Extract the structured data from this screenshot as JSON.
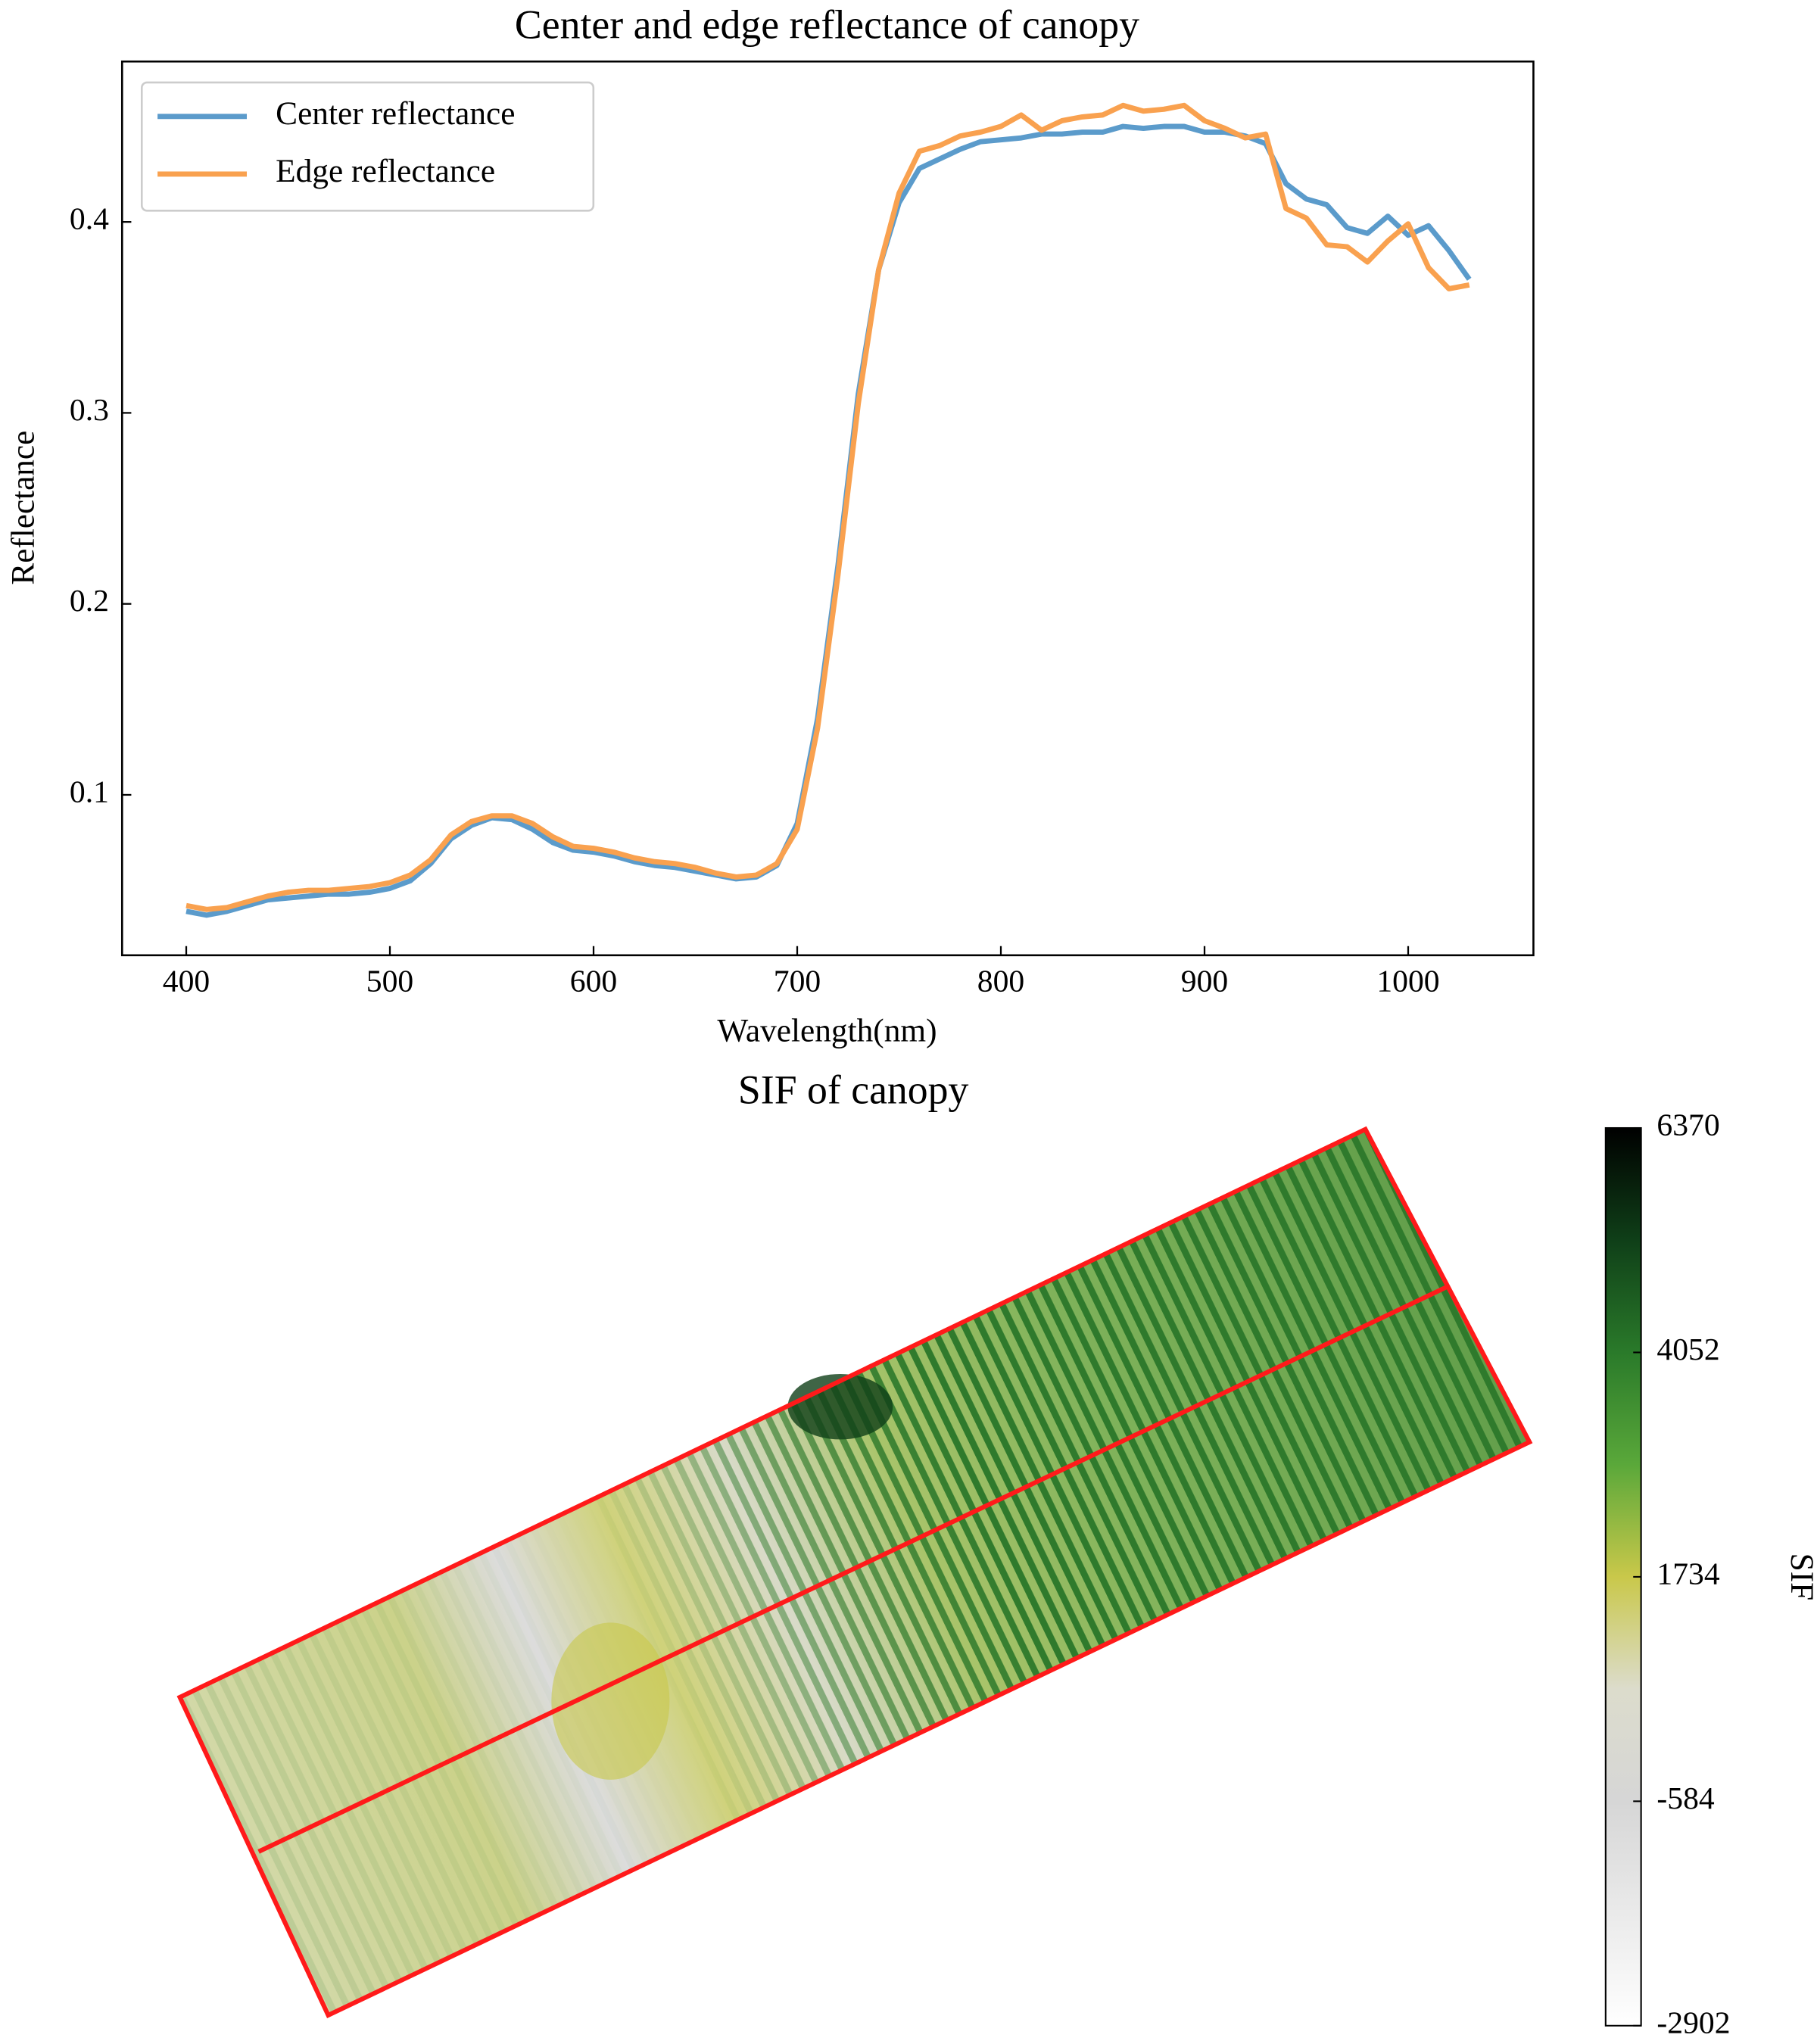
{
  "chart_data": [
    {
      "type": "line",
      "title": "Center and edge reflectance of canopy",
      "x_label": "Wavelength(nm)",
      "y_label": "Reflectance",
      "x": [
        400,
        410,
        420,
        430,
        440,
        450,
        460,
        470,
        480,
        490,
        500,
        510,
        520,
        530,
        540,
        550,
        560,
        570,
        580,
        590,
        600,
        610,
        620,
        630,
        640,
        650,
        660,
        670,
        680,
        690,
        700,
        710,
        720,
        730,
        740,
        750,
        760,
        770,
        780,
        790,
        800,
        810,
        820,
        830,
        840,
        850,
        860,
        870,
        880,
        890,
        900,
        910,
        920,
        930,
        940,
        950,
        960,
        970,
        980,
        990,
        1000,
        1010,
        1020,
        1030
      ],
      "series": [
        {
          "name": "Center reflectance",
          "color": "#5b9bcb",
          "values": [
            0.039,
            0.037,
            0.039,
            0.042,
            0.045,
            0.046,
            0.047,
            0.048,
            0.048,
            0.049,
            0.051,
            0.055,
            0.064,
            0.077,
            0.084,
            0.088,
            0.087,
            0.082,
            0.075,
            0.071,
            0.07,
            0.068,
            0.065,
            0.063,
            0.062,
            0.06,
            0.058,
            0.056,
            0.057,
            0.063,
            0.085,
            0.14,
            0.22,
            0.31,
            0.375,
            0.41,
            0.428,
            0.433,
            0.438,
            0.442,
            0.443,
            0.444,
            0.446,
            0.446,
            0.447,
            0.447,
            0.45,
            0.449,
            0.45,
            0.45,
            0.447,
            0.447,
            0.445,
            0.441,
            0.42,
            0.412,
            0.409,
            0.397,
            0.394,
            0.403,
            0.393,
            0.398,
            0.385,
            0.37
          ]
        },
        {
          "name": "Edge reflectance",
          "color": "#f9a14f",
          "values": [
            0.042,
            0.04,
            0.041,
            0.044,
            0.047,
            0.049,
            0.05,
            0.05,
            0.051,
            0.052,
            0.054,
            0.058,
            0.066,
            0.079,
            0.086,
            0.089,
            0.089,
            0.085,
            0.078,
            0.073,
            0.072,
            0.07,
            0.067,
            0.065,
            0.064,
            0.062,
            0.059,
            0.057,
            0.058,
            0.064,
            0.082,
            0.135,
            0.215,
            0.305,
            0.375,
            0.415,
            0.437,
            0.44,
            0.445,
            0.447,
            0.45,
            0.456,
            0.448,
            0.453,
            0.455,
            0.456,
            0.461,
            0.458,
            0.459,
            0.461,
            0.453,
            0.449,
            0.444,
            0.446,
            0.407,
            0.402,
            0.388,
            0.387,
            0.379,
            0.39,
            0.399,
            0.376,
            0.365,
            0.367
          ]
        }
      ],
      "xlim": [
        368.5,
        1061.5
      ],
      "ylim": [
        0.016,
        0.484
      ],
      "xticks": [
        400,
        500,
        600,
        700,
        800,
        900,
        1000
      ],
      "yticks": [
        0.1,
        0.2,
        0.3,
        0.4
      ],
      "legend": "upper left"
    },
    {
      "type": "image",
      "title": "SIF of canopy",
      "colorbar_label": "SIF",
      "clim": [
        -2902,
        6370
      ],
      "cticks": [
        -2902,
        -584,
        1734,
        4052,
        6370
      ],
      "colormap": [
        "#ffffff",
        "#eaeaea",
        "#d6d6d6",
        "#dcdccc",
        "#c9c84a",
        "#5aa83a",
        "#2a7a2a",
        "#0f3f18",
        "#000000"
      ]
    }
  ]
}
